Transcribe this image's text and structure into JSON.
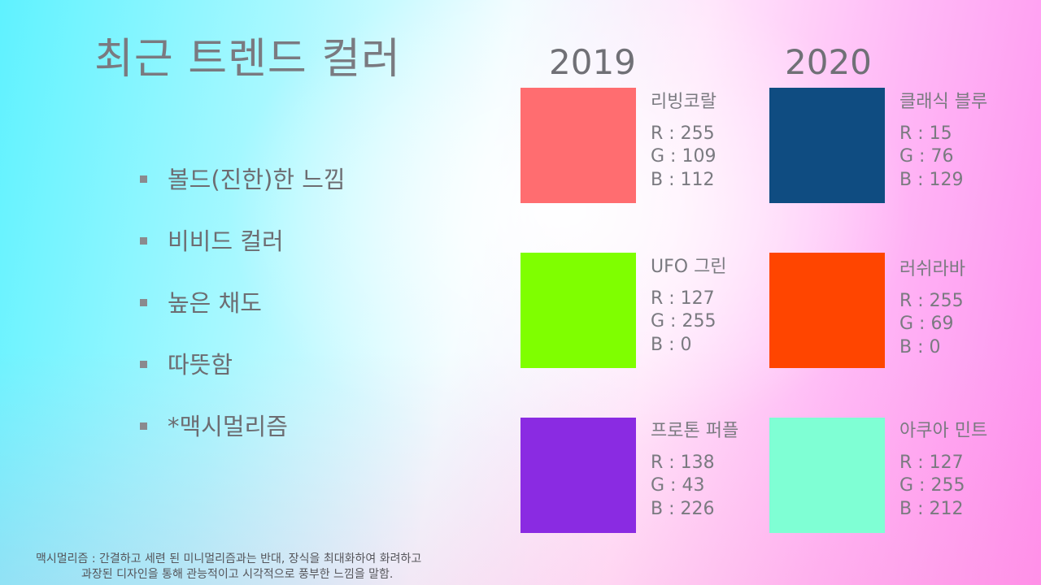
{
  "title": "최근 트렌드 컬러",
  "bullets": [
    "볼드(진한)한 느낌",
    "비비드 컬러",
    "높은 채도",
    "따뜻함",
    "*맥시멀리즘"
  ],
  "years": {
    "left": "2019",
    "right": "2020"
  },
  "colors_2019": [
    {
      "name": "리빙코랄",
      "hex": "#ff6d70",
      "r": "R : 255",
      "g": "G : 109",
      "b": "B : 112"
    },
    {
      "name": "UFO 그린",
      "hex": "#7fff00",
      "r": "R : 127",
      "g": "G : 255",
      "b": "B : 0"
    },
    {
      "name": "프로톤 퍼플",
      "hex": "#8a2be2",
      "r": "R : 138",
      "g": "G : 43",
      "b": "B : 226"
    }
  ],
  "colors_2020": [
    {
      "name": "클래식 블루",
      "hex": "#0f4c81",
      "r": "R : 15",
      "g": "G : 76",
      "b": "B : 129"
    },
    {
      "name": "러쉬라바",
      "hex": "#ff4500",
      "r": "R : 255",
      "g": "G : 69",
      "b": "B : 0"
    },
    {
      "name": "아쿠아 민트",
      "hex": "#7fffd4",
      "r": "R : 127",
      "g": "G : 255",
      "b": "B : 212"
    }
  ],
  "footnote": {
    "line1": "맥시멀리즘 : 간결하고 세련 된 미니멀리즘과는 반대, 장식을 최대화하여 화려하고",
    "line2": "과장된 디자인을 통해 관능적이고 시각적으로 풍부한 느낌을 말함."
  }
}
